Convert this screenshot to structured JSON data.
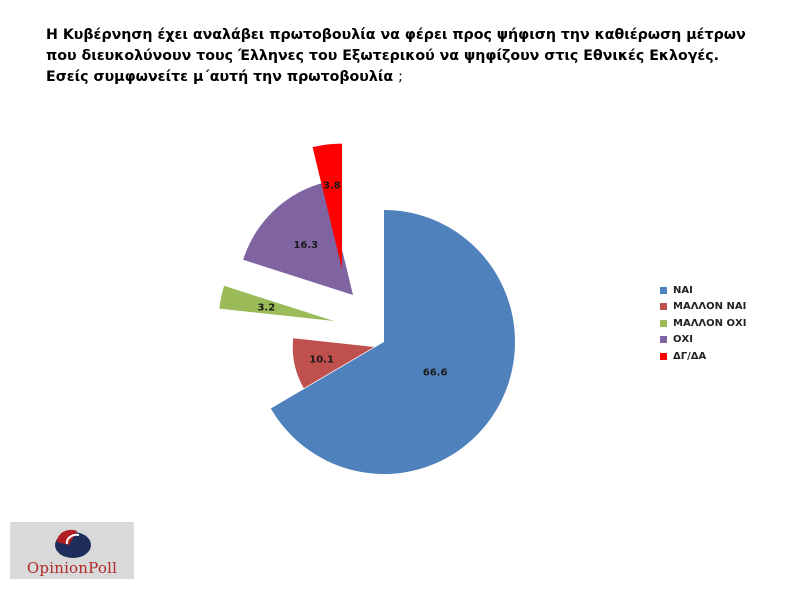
{
  "title": {
    "text": "Η Κυβέρνηση έχει αναλάβει πρωτοβουλία να φέρει προς ψήφιση την καθιέρωση  μέτρων που διευκολύνουν τους Έλληνες του Εξωτερικού να ψηφίζουν στις Εθνικές Εκλογές. Εσείς συμφωνείτε μ΄αυτή την πρωτοβουλία",
    "mark": ";"
  },
  "logo": {
    "text": "OpinionPoll",
    "colors": {
      "red": "#b01e23",
      "navy": "#1f2d5c"
    }
  },
  "chart_data": {
    "type": "pie",
    "exploded": true,
    "categories": [
      "ΝΑΙ",
      "ΜΑΛΛΟΝ ΝΑΙ",
      "ΜΑΛΛΟΝ ΟΧΙ",
      "ΟΧΙ",
      "ΔΓ/ΔΑ"
    ],
    "values": [
      66.6,
      10.1,
      3.2,
      16.3,
      3.8
    ],
    "data_labels": [
      "66.6",
      "10.1",
      "3.2",
      "16.3",
      "3.8"
    ],
    "colors": [
      "#4f81bd",
      "#c0504d",
      "#9bbb59",
      "#8064a2",
      "#ff0000"
    ],
    "legend": {
      "placement": "right"
    }
  }
}
